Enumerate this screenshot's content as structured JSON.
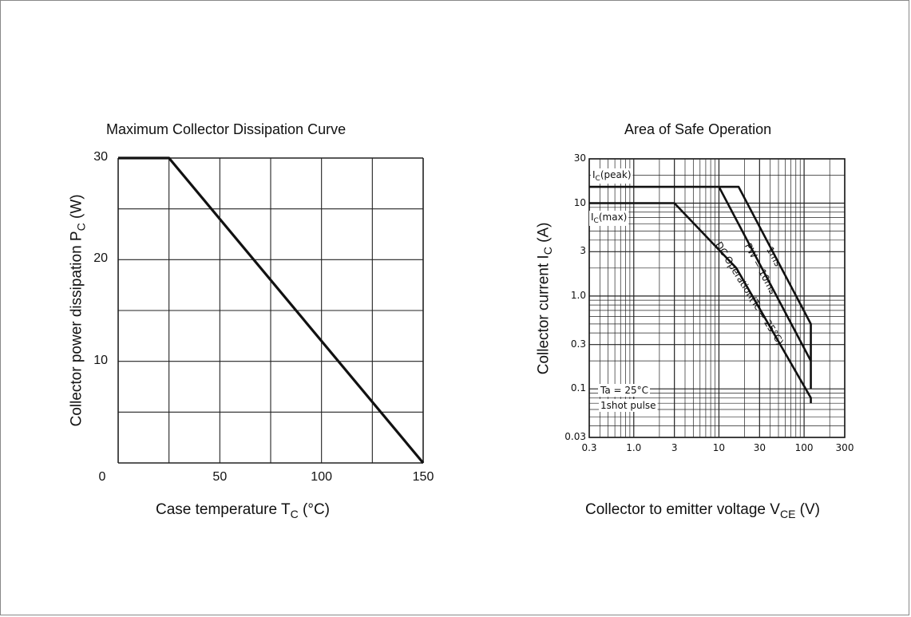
{
  "charts": [
    {
      "id": "dissipation",
      "chart_data": {
        "type": "line",
        "title": "Maximum Collector Dissipation Curve",
        "xlabel": "Case temperature  T",
        "xlabel_sub": "C",
        "xlabel_unit": " (°C)",
        "ylabel": "Collector power dissipation  P",
        "ylabel_sub": "C",
        "ylabel_unit": " (W)",
        "xlim": [
          0,
          150
        ],
        "ylim": [
          0,
          30
        ],
        "x_ticks": [
          0,
          50,
          100,
          150
        ],
        "y_ticks": [
          10,
          20,
          30
        ],
        "grid": true,
        "series": [
          {
            "x": [
              0,
              25,
              150
            ],
            "y": [
              30,
              30,
              0
            ]
          }
        ]
      }
    },
    {
      "id": "soa",
      "chart_data": {
        "type": "line",
        "title": "Area of Safe Operation",
        "xlabel": "Collector to emitter voltage V",
        "xlabel_sub": "CE",
        "xlabel_unit": " (V)",
        "ylabel": "Collector current  I",
        "ylabel_sub": "C",
        "ylabel_unit": " (A)",
        "x_scale": "log",
        "y_scale": "log",
        "xlim": [
          0.3,
          300
        ],
        "ylim": [
          0.03,
          30
        ],
        "x_ticks": [
          "0.3",
          "1.0",
          "3",
          "10",
          "30",
          "100",
          "300"
        ],
        "y_ticks": [
          "0.03",
          "0.1",
          "0.3",
          "1.0",
          "3",
          "10",
          "30"
        ],
        "grid": true,
        "series": [
          {
            "name": "1ms",
            "x": [
              0.3,
              17,
              120,
              120
            ],
            "y": [
              15,
              15,
              0.5,
              0.1
            ]
          },
          {
            "name": "PW = 10ms",
            "x": [
              10,
              120
            ],
            "y": [
              15,
              0.2
            ]
          },
          {
            "name": "DC Operation(Tc = 25°C)",
            "x": [
              0.3,
              3,
              16,
              120,
              120
            ],
            "y": [
              10,
              10,
              2,
              0.08,
              0.07
            ]
          }
        ],
        "annotations": [
          {
            "text": "I",
            "sub": "C",
            "rest": "(peak)"
          },
          {
            "text": "I",
            "sub": "C",
            "rest": "(max)"
          },
          {
            "text": "Ta = 25°C"
          },
          {
            "text": "1shot pulse"
          }
        ]
      }
    }
  ]
}
